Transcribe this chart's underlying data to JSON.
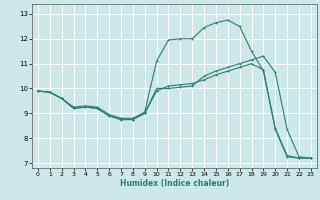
{
  "xlabel": "Humidex (Indice chaleur)",
  "background_color": "#cce8e8",
  "grid_color": "#ffffff",
  "line_color": "#2e7d6e",
  "xlim": [
    -0.5,
    23.5
  ],
  "ylim": [
    6.8,
    13.4
  ],
  "xticks": [
    0,
    1,
    2,
    3,
    4,
    5,
    6,
    7,
    8,
    9,
    10,
    11,
    12,
    13,
    14,
    15,
    16,
    17,
    18,
    19,
    20,
    21,
    22,
    23
  ],
  "yticks": [
    7,
    8,
    9,
    10,
    11,
    12,
    13
  ],
  "line1_x": [
    0,
    1,
    2,
    3,
    4,
    5,
    6,
    7,
    8,
    9,
    10,
    11,
    12,
    13,
    14,
    15,
    16,
    17,
    18,
    19,
    20,
    21,
    22,
    23
  ],
  "line1_y": [
    9.9,
    9.85,
    9.6,
    9.2,
    9.25,
    9.2,
    8.9,
    8.75,
    8.75,
    9.0,
    10.0,
    10.0,
    10.05,
    10.1,
    10.5,
    10.7,
    10.85,
    11.0,
    11.15,
    11.3,
    10.65,
    8.35,
    7.25,
    7.2
  ],
  "line2_x": [
    0,
    1,
    2,
    3,
    4,
    5,
    6,
    7,
    8,
    9,
    10,
    11,
    12,
    13,
    14,
    15,
    16,
    17,
    18,
    19,
    20,
    21,
    22,
    23
  ],
  "line2_y": [
    9.9,
    9.85,
    9.6,
    9.25,
    9.3,
    9.25,
    8.95,
    8.8,
    8.8,
    9.05,
    11.1,
    11.95,
    12.0,
    12.0,
    12.45,
    12.65,
    12.75,
    12.5,
    11.5,
    10.7,
    8.35,
    7.25,
    7.2,
    7.2
  ],
  "line3_x": [
    0,
    1,
    2,
    3,
    4,
    5,
    6,
    7,
    8,
    9,
    10,
    11,
    12,
    13,
    14,
    15,
    16,
    17,
    18,
    19,
    20,
    21,
    22,
    23
  ],
  "line3_y": [
    9.9,
    9.85,
    9.6,
    9.2,
    9.25,
    9.2,
    8.9,
    8.75,
    8.75,
    9.0,
    9.9,
    10.1,
    10.15,
    10.2,
    10.35,
    10.55,
    10.7,
    10.85,
    11.0,
    10.75,
    8.4,
    7.3,
    7.2,
    7.2
  ]
}
